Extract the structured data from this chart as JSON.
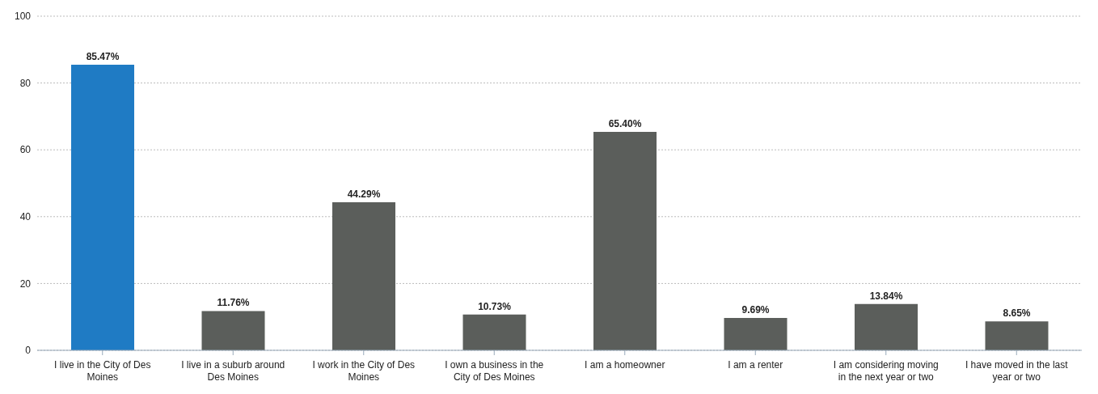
{
  "chart_data": {
    "type": "bar",
    "categories": [
      "I live in the City of Des Moines",
      "I live in a suburb around Des Moines",
      "I work in the City of Des Moines",
      "I own a business in the City of Des Moines",
      "I am a homeowner",
      "I am a renter",
      "I am considering moving in the next year or two",
      "I have moved in the last year or two"
    ],
    "values": [
      85.47,
      11.76,
      44.29,
      10.73,
      65.4,
      9.69,
      13.84,
      8.65
    ],
    "colors": [
      "#1f7bc4",
      "#5b5e5b",
      "#5b5e5b",
      "#5b5e5b",
      "#5b5e5b",
      "#5b5e5b",
      "#5b5e5b",
      "#5b5e5b"
    ],
    "value_labels": [
      "85.47%",
      "11.76%",
      "44.29%",
      "10.73%",
      "65.40%",
      "9.69%",
      "13.84%",
      "8.65%"
    ],
    "ylim": [
      0,
      100
    ],
    "yticks": [
      0,
      20,
      40,
      60,
      80,
      100
    ],
    "grid": "y"
  }
}
